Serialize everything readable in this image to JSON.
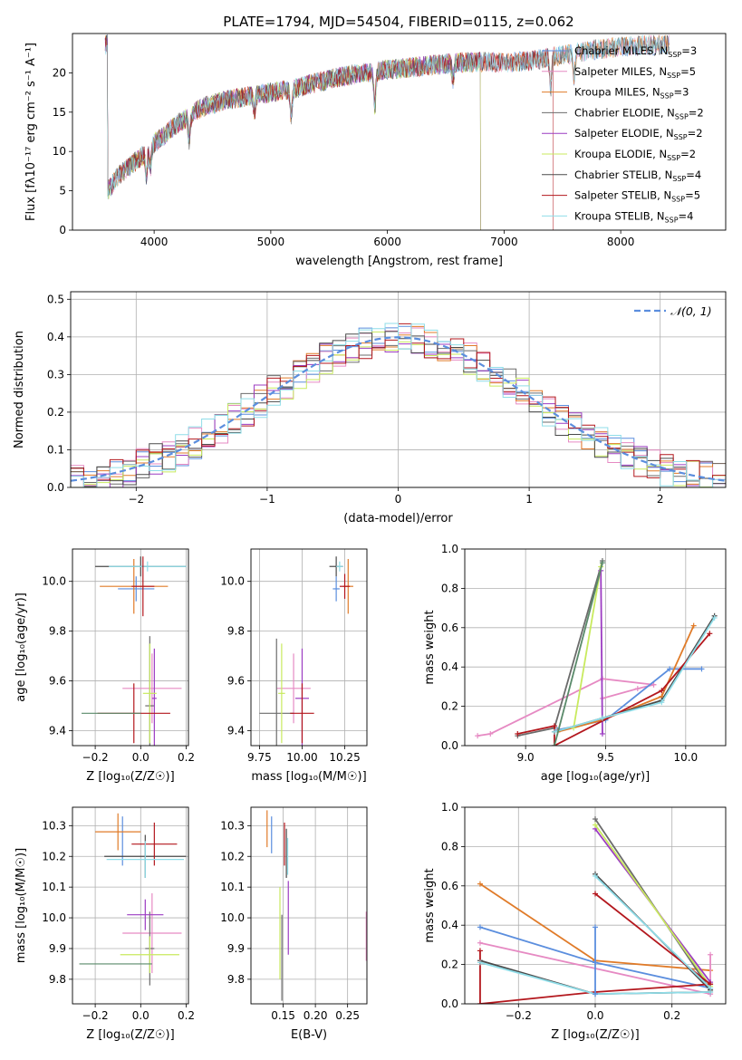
{
  "figure_title": "PLATE=1794, MJD=54504, FIBERID=0115, z=0.062",
  "colors": {
    "chabrier_miles": "#5b8ede",
    "salpeter_miles": "#e68ac3",
    "kroupa_miles": "#e07b29",
    "chabrier_elodie": "#6b6b6b",
    "salpeter_elodie": "#9c3cc2",
    "kroupa_elodie": "#c8ea5e",
    "chabrier_stelib": "#4a4a4a",
    "salpeter_stelib": "#b3171d",
    "kroupa_stelib": "#8fdde8",
    "normal_curve": "#5b8ede",
    "extra_green": "#5a8a6a"
  },
  "chart_data": [
    {
      "id": "spectrum",
      "type": "line",
      "xlabel": "wavelength [Angstrom, rest frame]",
      "ylabel": "Flux [fλ10⁻¹⁷ erg cm⁻² s⁻¹ A⁻¹]",
      "xlim": [
        3300,
        8900
      ],
      "ylim": [
        0,
        25
      ],
      "xticks": [
        4000,
        5000,
        6000,
        7000,
        8000
      ],
      "yticks": [
        0,
        5,
        10,
        15,
        20
      ],
      "grid": false,
      "legend_position": "right",
      "legend": [
        {
          "label": "Chabrier MILES, N",
          "sub": "SSP",
          "value": "=3"
        },
        {
          "label": "Salpeter MILES, N",
          "sub": "SSP",
          "value": "=5"
        },
        {
          "label": "Kroupa MILES, N",
          "sub": "SSP",
          "value": "=3"
        },
        {
          "label": "Chabrier ELODIE, N",
          "sub": "SSP",
          "value": "=2"
        },
        {
          "label": "Salpeter ELODIE, N",
          "sub": "SSP",
          "value": "=2"
        },
        {
          "label": "Kroupa ELODIE, N",
          "sub": "SSP",
          "value": "=2"
        },
        {
          "label": "Chabrier STELIB, N",
          "sub": "SSP",
          "value": "=4"
        },
        {
          "label": "Salpeter STELIB, N",
          "sub": "SSP",
          "value": "=5"
        },
        {
          "label": "Kroupa STELIB, N",
          "sub": "SSP",
          "value": "=4"
        }
      ],
      "continuum": [
        [
          3600,
          5.0
        ],
        [
          3700,
          7.0
        ],
        [
          3900,
          9.5
        ],
        [
          4000,
          11.0
        ],
        [
          4200,
          13.5
        ],
        [
          4400,
          15.5
        ],
        [
          4600,
          16.5
        ],
        [
          4800,
          17.0
        ],
        [
          5000,
          17.5
        ],
        [
          5200,
          18.0
        ],
        [
          5400,
          18.8
        ],
        [
          5600,
          19.5
        ],
        [
          5800,
          20.0
        ],
        [
          6000,
          20.4
        ],
        [
          6200,
          20.7
        ],
        [
          6400,
          21.0
        ],
        [
          6600,
          21.3
        ],
        [
          6800,
          21.4
        ],
        [
          7000,
          21.3
        ],
        [
          7200,
          21.5
        ],
        [
          7400,
          22.0
        ],
        [
          7600,
          22.5
        ],
        [
          7800,
          23.0
        ],
        [
          8000,
          23.3
        ],
        [
          8200,
          23.5
        ],
        [
          8400,
          23.6
        ]
      ],
      "absorption_dips": [
        [
          3933,
          3.0
        ],
        [
          3968,
          2.5
        ],
        [
          4300,
          3.0
        ],
        [
          4861,
          2.0
        ],
        [
          5175,
          3.5
        ],
        [
          5892,
          4.5
        ],
        [
          6563,
          2.0
        ],
        [
          7400,
          4.0
        ],
        [
          7600,
          3.0
        ]
      ]
    },
    {
      "id": "residuals",
      "type": "histogram",
      "xlabel": "(data-model)/error",
      "ylabel": "Normed distribution",
      "xlim": [
        -2.5,
        2.5
      ],
      "ylim": [
        0,
        0.52
      ],
      "xticks": [
        -2,
        -1,
        0,
        1,
        2
      ],
      "yticks": [
        0.0,
        0.1,
        0.2,
        0.3,
        0.4,
        0.5
      ],
      "grid": true,
      "legend_position": "top-right",
      "curve_label": "𝒩(0, 1)",
      "bin_width": 0.1
    },
    {
      "id": "age_vs_Z",
      "type": "errorbar",
      "xlabel": "Z [log₁₀(Z/Z☉)]",
      "ylabel": "age  [log₁₀(age/yr)]",
      "xlim": [
        -0.3,
        0.21
      ],
      "ylim": [
        9.34,
        10.13
      ],
      "xticks": [
        -0.2,
        0.0,
        0.2
      ],
      "yticks": [
        9.4,
        9.6,
        9.8,
        10.0
      ],
      "grid": true,
      "points": [
        {
          "series": "chabrier_miles",
          "x": -0.02,
          "xerr": 0.08,
          "y": 9.97,
          "yerr": 0.05
        },
        {
          "series": "salpeter_miles",
          "x": 0.05,
          "xerr": 0.13,
          "y": 9.57,
          "yerr": 0.14
        },
        {
          "series": "kroupa_miles",
          "x": -0.03,
          "xerr": 0.15,
          "y": 9.98,
          "yerr": 0.11
        },
        {
          "series": "chabrier_elodie",
          "x": 0.04,
          "xerr": 0.02,
          "y": 9.5,
          "yerr": 0.28
        },
        {
          "series": "salpeter_elodie",
          "x": 0.06,
          "xerr": 0.01,
          "y": 9.53,
          "yerr": 0.2
        },
        {
          "series": "kroupa_elodie",
          "x": 0.04,
          "xerr": 0.03,
          "y": 9.55,
          "yerr": 0.2
        },
        {
          "series": "chabrier_stelib",
          "x": 0.0,
          "xerr": 0.2,
          "y": 10.06,
          "yerr": 0.04
        },
        {
          "series": "salpeter_stelib",
          "x": -0.03,
          "xerr": 0.16,
          "y": 9.47,
          "yerr": 0.12
        },
        {
          "series": "kroupa_stelib",
          "x": 0.03,
          "xerr": 0.17,
          "y": 10.06,
          "yerr": 0.02
        },
        {
          "series": "salpeter_stelib",
          "x": 0.01,
          "xerr": 0.05,
          "y": 9.98,
          "yerr": 0.12
        },
        {
          "series": "extra_green",
          "x": -0.13,
          "xerr": 0.13,
          "y": 9.47,
          "yerr": 0.0
        }
      ]
    },
    {
      "id": "age_vs_mass",
      "type": "errorbar",
      "xlabel": "mass [log₁₀(M/M☉)]",
      "xlim": [
        9.7,
        10.38
      ],
      "ylim": [
        9.34,
        10.13
      ],
      "xticks": [
        9.75,
        10.0,
        10.25
      ],
      "yticks": [
        9.4,
        9.6,
        9.8,
        10.0
      ],
      "grid": true,
      "points": [
        {
          "series": "chabrier_miles",
          "x": 10.2,
          "xerr": 0.02,
          "y": 9.97,
          "yerr": 0.05
        },
        {
          "series": "salpeter_miles",
          "x": 9.95,
          "xerr": 0.1,
          "y": 9.57,
          "yerr": 0.14
        },
        {
          "series": "kroupa_miles",
          "x": 10.27,
          "xerr": 0.03,
          "y": 9.98,
          "yerr": 0.11
        },
        {
          "series": "chabrier_elodie",
          "x": 9.85,
          "xerr": 0.1,
          "y": 9.47,
          "yerr": 0.3
        },
        {
          "series": "salpeter_elodie",
          "x": 10.0,
          "xerr": 0.04,
          "y": 9.53,
          "yerr": 0.2
        },
        {
          "series": "kroupa_elodie",
          "x": 9.88,
          "xerr": 0.02,
          "y": 9.55,
          "yerr": 0.2
        },
        {
          "series": "chabrier_stelib",
          "x": 10.2,
          "xerr": 0.04,
          "y": 10.06,
          "yerr": 0.04
        },
        {
          "series": "salpeter_stelib",
          "x": 10.0,
          "xerr": 0.07,
          "y": 9.47,
          "yerr": 0.12
        },
        {
          "series": "kroupa_stelib",
          "x": 10.22,
          "xerr": 0.02,
          "y": 10.06,
          "yerr": 0.02
        },
        {
          "series": "salpeter_stelib",
          "x": 10.25,
          "xerr": 0.03,
          "y": 9.98,
          "yerr": 0.05
        }
      ]
    },
    {
      "id": "weight_vs_age",
      "type": "line",
      "xlabel": "age  [log₁₀(age/yr)]",
      "ylabel": "mass weight",
      "xlim": [
        8.62,
        10.25
      ],
      "ylim": [
        0,
        1.0
      ],
      "xticks": [
        9.0,
        9.5,
        10.0
      ],
      "yticks": [
        0.0,
        0.2,
        0.4,
        0.6,
        0.8,
        1.0
      ],
      "grid": true,
      "series": [
        {
          "series": "salpeter_miles",
          "x": [
            8.7,
            8.78,
            9.48,
            9.8
          ],
          "y": [
            0.05,
            0.06,
            0.34,
            0.31
          ]
        },
        {
          "series": "salpeter_miles",
          "x": [
            9.48,
            9.7,
            9.8
          ],
          "y": [
            0.24,
            0.29,
            0.31
          ]
        },
        {
          "series": "chabrier_miles",
          "x": [
            9.2,
            9.5,
            9.9,
            10.1
          ],
          "y": [
            0.08,
            0.13,
            0.39,
            0.39
          ]
        },
        {
          "series": "kroupa_miles",
          "x": [
            9.2,
            9.48,
            9.85,
            10.05
          ],
          "y": [
            0.07,
            0.13,
            0.25,
            0.61
          ]
        },
        {
          "series": "chabrier_elodie",
          "x": [
            8.95,
            9.18,
            9.48
          ],
          "y": [
            0.05,
            0.09,
            0.94
          ]
        },
        {
          "series": "salpeter_elodie",
          "x": [
            9.47,
            9.48
          ],
          "y": [
            0.89,
            0.06
          ]
        },
        {
          "series": "kroupa_elodie",
          "x": [
            9.3,
            9.47
          ],
          "y": [
            0.09,
            0.91
          ]
        },
        {
          "series": "chabrier_stelib",
          "x": [
            9.18,
            9.48,
            9.85,
            10.18
          ],
          "y": [
            0.07,
            0.14,
            0.23,
            0.66
          ]
        },
        {
          "series": "salpeter_stelib",
          "x": [
            8.95,
            9.18,
            9.18,
            9.85,
            10.15
          ],
          "y": [
            0.06,
            0.1,
            0.0,
            0.28,
            0.57
          ]
        },
        {
          "series": "kroupa_stelib",
          "x": [
            9.18,
            9.48,
            9.85,
            10.18
          ],
          "y": [
            0.07,
            0.14,
            0.22,
            0.65
          ]
        },
        {
          "series": "extra_green",
          "x": [
            9.18,
            9.48
          ],
          "y": [
            0.0,
            0.93
          ]
        }
      ]
    },
    {
      "id": "mass_vs_Z",
      "type": "errorbar",
      "xlabel": "Z [log₁₀(Z/Z☉)]",
      "ylabel": "mass [log₁₀(M/M☉)]",
      "xlim": [
        -0.3,
        0.21
      ],
      "ylim": [
        9.72,
        10.36
      ],
      "xticks": [
        -0.2,
        0.0,
        0.2
      ],
      "yticks": [
        9.8,
        9.9,
        10.0,
        10.1,
        10.2,
        10.3
      ],
      "grid": true,
      "points": [
        {
          "series": "chabrier_miles",
          "x": -0.08,
          "xerr": 0.0,
          "y": 10.25,
          "yerr": 0.08
        },
        {
          "series": "salpeter_miles",
          "x": 0.05,
          "xerr": 0.13,
          "y": 9.95,
          "yerr": 0.13
        },
        {
          "series": "kroupa_miles",
          "x": -0.1,
          "xerr": 0.1,
          "y": 10.28,
          "yerr": 0.06
        },
        {
          "series": "chabrier_elodie",
          "x": 0.04,
          "xerr": 0.02,
          "y": 9.9,
          "yerr": 0.12
        },
        {
          "series": "salpeter_elodie",
          "x": 0.02,
          "xerr": 0.08,
          "y": 10.01,
          "yerr": 0.05
        },
        {
          "series": "kroupa_elodie",
          "x": 0.04,
          "xerr": 0.13,
          "y": 9.88,
          "yerr": 0.06
        },
        {
          "series": "chabrier_stelib",
          "x": 0.02,
          "xerr": 0.18,
          "y": 10.2,
          "yerr": 0.07
        },
        {
          "series": "salpeter_stelib",
          "x": 0.06,
          "xerr": 0.1,
          "y": 10.24,
          "yerr": 0.07
        },
        {
          "series": "kroupa_stelib",
          "x": 0.02,
          "xerr": 0.17,
          "y": 10.19,
          "yerr": 0.06
        },
        {
          "series": "extra_green",
          "x": -0.11,
          "xerr": 0.16,
          "y": 9.85,
          "yerr": 0.0
        }
      ]
    },
    {
      "id": "mass_vs_EBV",
      "type": "errorbar",
      "xlabel": "E(B-V)",
      "xlim": [
        0.1,
        0.28
      ],
      "ylim": [
        9.72,
        10.36
      ],
      "xticks": [
        0.15,
        0.2,
        0.25
      ],
      "yticks": [
        9.8,
        9.9,
        10.0,
        10.1,
        10.2,
        10.3
      ],
      "grid": true,
      "points": [
        {
          "series": "chabrier_miles",
          "x": 0.132,
          "y": 10.27,
          "yerr": 0.06
        },
        {
          "series": "salpeter_miles",
          "x": 0.279,
          "y": 9.94,
          "yerr": 0.08
        },
        {
          "series": "kroupa_miles",
          "x": 0.125,
          "y": 10.29,
          "yerr": 0.06
        },
        {
          "series": "chabrier_elodie",
          "x": 0.148,
          "y": 9.87,
          "yerr": 0.14
        },
        {
          "series": "salpeter_elodie",
          "x": 0.158,
          "y": 10.0,
          "yerr": 0.12
        },
        {
          "series": "kroupa_elodie",
          "x": 0.145,
          "y": 9.95,
          "yerr": 0.15
        },
        {
          "series": "chabrier_stelib",
          "x": 0.155,
          "y": 10.21,
          "yerr": 0.08
        },
        {
          "series": "salpeter_stelib",
          "x": 0.152,
          "y": 10.24,
          "yerr": 0.07
        },
        {
          "series": "kroupa_stelib",
          "x": 0.157,
          "y": 10.2,
          "yerr": 0.06
        }
      ]
    },
    {
      "id": "weight_vs_Z",
      "type": "line",
      "xlabel": "Z [log₁₀(Z/Z☉)]",
      "ylabel": "mass weight",
      "xlim": [
        -0.34,
        0.34
      ],
      "ylim": [
        0,
        1.0
      ],
      "xticks": [
        -0.2,
        0.0,
        0.2
      ],
      "yticks": [
        0.0,
        0.2,
        0.4,
        0.6,
        0.8,
        1.0
      ],
      "grid": true,
      "series": [
        {
          "series": "kroupa_miles",
          "x": [
            -0.3,
            0.0,
            0.3
          ],
          "y": [
            0.61,
            0.22,
            0.17
          ]
        },
        {
          "series": "chabrier_miles",
          "x": [
            -0.3,
            0.0,
            0.3
          ],
          "y": [
            0.39,
            0.21,
            0.08
          ]
        },
        {
          "series": "salpeter_miles",
          "x": [
            -0.3,
            0.3
          ],
          "y": [
            0.31,
            0.05
          ]
        },
        {
          "series": "salpeter_miles",
          "x": [
            0.3,
            0.3
          ],
          "y": [
            0.05,
            0.25
          ]
        },
        {
          "series": "chabrier_elodie",
          "x": [
            0.0,
            0.3
          ],
          "y": [
            0.94,
            0.07
          ]
        },
        {
          "series": "salpeter_elodie",
          "x": [
            0.0,
            0.3
          ],
          "y": [
            0.89,
            0.11
          ]
        },
        {
          "series": "kroupa_elodie",
          "x": [
            0.0,
            0.3
          ],
          "y": [
            0.91,
            0.09
          ]
        },
        {
          "series": "chabrier_stelib",
          "x": [
            -0.3,
            0.0,
            0.3
          ],
          "y": [
            0.22,
            0.05,
            0.06
          ]
        },
        {
          "series": "chabrier_stelib",
          "x": [
            0.0,
            0.3
          ],
          "y": [
            0.66,
            0.07
          ]
        },
        {
          "series": "salpeter_stelib",
          "x": [
            -0.3,
            0.0,
            0.3
          ],
          "y": [
            0.0,
            0.06,
            0.1
          ]
        },
        {
          "series": "salpeter_stelib",
          "x": [
            -0.3,
            -0.3
          ],
          "y": [
            0.0,
            0.27
          ]
        },
        {
          "series": "salpeter_stelib",
          "x": [
            0.0,
            0.3
          ],
          "y": [
            0.56,
            0.1
          ]
        },
        {
          "series": "kroupa_stelib",
          "x": [
            -0.3,
            0.0,
            0.3
          ],
          "y": [
            0.21,
            0.05,
            0.06
          ]
        },
        {
          "series": "kroupa_stelib",
          "x": [
            0.0,
            0.3
          ],
          "y": [
            0.65,
            0.08
          ]
        },
        {
          "series": "chabrier_miles",
          "x": [
            0.0,
            0.0
          ],
          "y": [
            0.05,
            0.39
          ]
        }
      ]
    }
  ]
}
